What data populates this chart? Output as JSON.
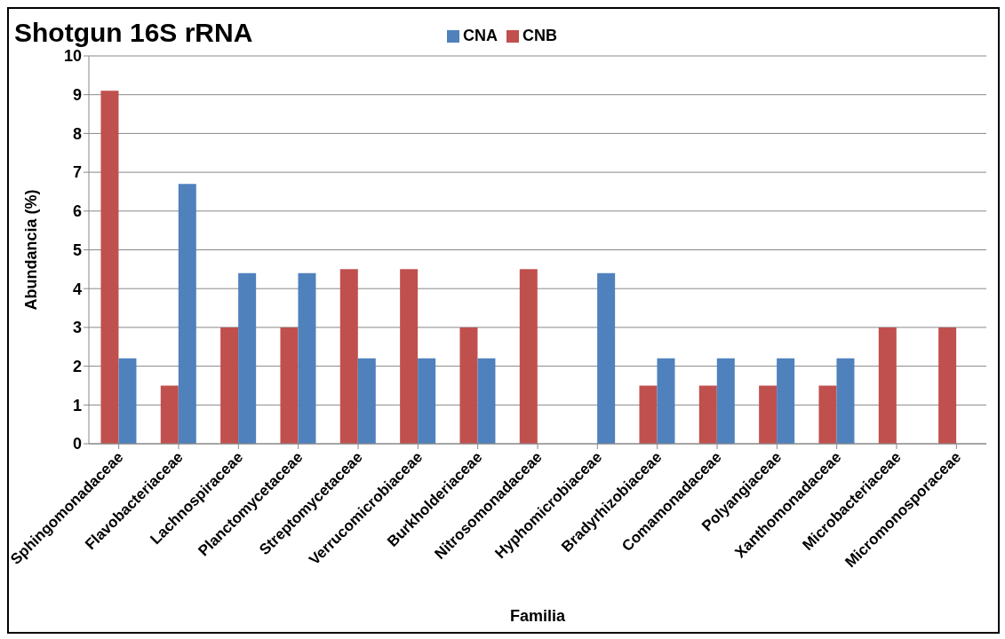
{
  "chart_data": {
    "type": "bar",
    "title": "Shotgun 16S rRNA",
    "xlabel": "Familia",
    "ylabel": "Abundancia (%)",
    "categories": [
      "Sphingomonadaceae",
      "Flavobacteriaceae",
      "Lachnospiraceae",
      "Planctomycetaceae",
      "Streptomycetaceae",
      "Verrucomicrobiaceae",
      "Burkholderiaceae",
      "Nitrosomonadaceae",
      "Hyphomicrobiaceae",
      "Bradyrhizobiaceae",
      "Comamonadaceae",
      "Polyangiaceae",
      "Xanthomonadaceae",
      "Microbacteriaceae",
      "Micromonosporaceae"
    ],
    "series": [
      {
        "name": "CNB",
        "color": "#c0504d",
        "values": [
          9.1,
          1.5,
          3.0,
          3.0,
          4.5,
          4.5,
          3.0,
          4.5,
          0,
          1.5,
          1.5,
          1.5,
          1.5,
          3.0,
          3.0
        ]
      },
      {
        "name": "CNA",
        "color": "#4f81bd",
        "values": [
          2.2,
          6.7,
          4.4,
          4.4,
          2.2,
          2.2,
          2.2,
          0,
          4.4,
          2.2,
          2.2,
          2.2,
          2.2,
          0,
          0
        ]
      }
    ],
    "ylim": [
      0,
      10
    ],
    "yticks": [
      0,
      1,
      2,
      3,
      4,
      5,
      6,
      7,
      8,
      9,
      10
    ],
    "grid": "y",
    "legend": "top"
  }
}
